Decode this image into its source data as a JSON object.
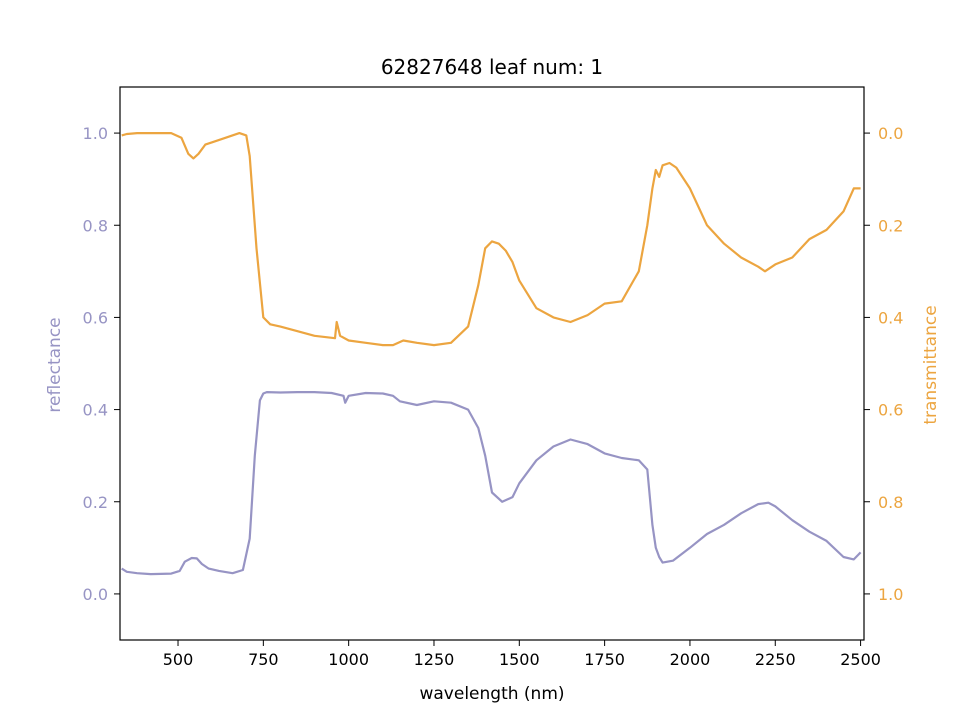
{
  "chart_data": {
    "type": "line",
    "title": "62827648 leaf num: 1",
    "xlabel": "wavelength (nm)",
    "ylabel_left": "reflectance",
    "ylabel_right": "transmittance",
    "xlim": [
      330,
      2510
    ],
    "ylim_left": [
      -0.1,
      1.1
    ],
    "ylim_right": [
      1.1,
      -0.1
    ],
    "right_axis_inverted": true,
    "x_ticks": [
      500,
      750,
      1000,
      1250,
      1500,
      1750,
      2000,
      2250,
      2500
    ],
    "y_ticks_left": [
      "0.0",
      "0.2",
      "0.4",
      "0.6",
      "0.8",
      "1.0"
    ],
    "y_ticks_right": [
      "0.0",
      "0.2",
      "0.4",
      "0.6",
      "0.8",
      "1.0"
    ],
    "grid": false,
    "colors": {
      "reflectance": "#9794c4",
      "transmittance": "#eca540"
    },
    "series": [
      {
        "name": "reflectance",
        "axis": "left",
        "x": [
          335,
          350,
          380,
          420,
          480,
          505,
          520,
          540,
          555,
          570,
          590,
          620,
          660,
          690,
          710,
          725,
          740,
          750,
          760,
          800,
          850,
          900,
          950,
          985,
          990,
          1000,
          1050,
          1100,
          1130,
          1150,
          1200,
          1250,
          1300,
          1350,
          1380,
          1400,
          1420,
          1450,
          1480,
          1500,
          1550,
          1600,
          1650,
          1700,
          1750,
          1800,
          1850,
          1875,
          1890,
          1900,
          1910,
          1920,
          1950,
          2000,
          2050,
          2100,
          2150,
          2200,
          2230,
          2250,
          2300,
          2350,
          2400,
          2450,
          2480,
          2500
        ],
        "y": [
          0.055,
          0.048,
          0.045,
          0.043,
          0.044,
          0.05,
          0.07,
          0.078,
          0.077,
          0.065,
          0.055,
          0.05,
          0.045,
          0.052,
          0.12,
          0.3,
          0.42,
          0.435,
          0.438,
          0.437,
          0.438,
          0.438,
          0.436,
          0.43,
          0.415,
          0.43,
          0.436,
          0.435,
          0.43,
          0.418,
          0.41,
          0.418,
          0.415,
          0.4,
          0.36,
          0.3,
          0.22,
          0.2,
          0.21,
          0.24,
          0.29,
          0.32,
          0.335,
          0.325,
          0.305,
          0.295,
          0.29,
          0.27,
          0.15,
          0.1,
          0.08,
          0.068,
          0.072,
          0.1,
          0.13,
          0.15,
          0.175,
          0.195,
          0.198,
          0.19,
          0.16,
          0.135,
          0.115,
          0.08,
          0.075,
          0.09
        ]
      },
      {
        "name": "transmittance",
        "axis": "right",
        "x": [
          335,
          350,
          380,
          420,
          480,
          510,
          530,
          545,
          560,
          580,
          600,
          640,
          680,
          700,
          710,
          730,
          750,
          770,
          800,
          850,
          900,
          960,
          965,
          975,
          1000,
          1050,
          1100,
          1130,
          1160,
          1200,
          1250,
          1300,
          1350,
          1380,
          1400,
          1420,
          1440,
          1460,
          1480,
          1500,
          1550,
          1600,
          1650,
          1700,
          1750,
          1800,
          1850,
          1875,
          1890,
          1900,
          1910,
          1920,
          1940,
          1960,
          2000,
          2050,
          2100,
          2150,
          2200,
          2220,
          2250,
          2300,
          2350,
          2400,
          2450,
          2480,
          2500
        ],
        "y": [
          0.005,
          0.002,
          0.0,
          0.0,
          0.0,
          0.01,
          0.045,
          0.055,
          0.045,
          0.025,
          0.02,
          0.01,
          0.0,
          0.005,
          0.05,
          0.25,
          0.4,
          0.415,
          0.42,
          0.43,
          0.44,
          0.445,
          0.41,
          0.44,
          0.45,
          0.455,
          0.46,
          0.46,
          0.45,
          0.455,
          0.46,
          0.455,
          0.42,
          0.33,
          0.25,
          0.235,
          0.24,
          0.255,
          0.28,
          0.32,
          0.38,
          0.4,
          0.41,
          0.395,
          0.37,
          0.365,
          0.3,
          0.2,
          0.12,
          0.08,
          0.095,
          0.07,
          0.065,
          0.075,
          0.12,
          0.2,
          0.24,
          0.27,
          0.29,
          0.3,
          0.285,
          0.27,
          0.23,
          0.21,
          0.17,
          0.12,
          0.12
        ]
      }
    ]
  }
}
